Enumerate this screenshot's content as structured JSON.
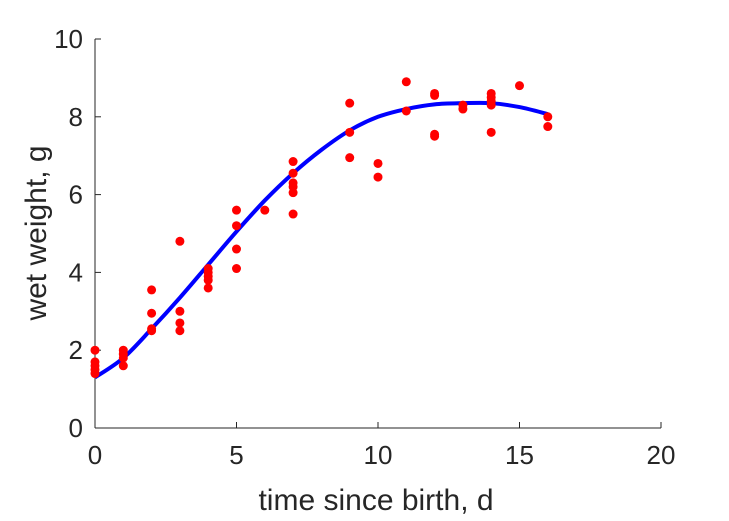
{
  "chart_data": {
    "type": "scatter",
    "xlabel": "time since birth, d",
    "ylabel": "wet weight, g",
    "xlim": [
      0,
      20
    ],
    "ylim": [
      0,
      10
    ],
    "xticks": [
      "0",
      "5",
      "10",
      "15",
      "20"
    ],
    "yticks": [
      "0",
      "2",
      "4",
      "6",
      "8",
      "10"
    ],
    "grid": false,
    "legend": "none",
    "series": [
      {
        "kind": "points",
        "color": "#ff0000",
        "x": [
          0,
          0,
          0,
          0,
          0,
          1,
          1,
          1,
          1,
          2,
          2,
          2,
          2,
          3,
          3,
          3,
          3,
          4,
          4,
          4,
          4,
          4,
          5,
          5,
          5,
          5,
          6,
          7,
          7,
          7,
          7,
          7,
          7,
          9,
          9,
          9,
          10,
          10,
          11,
          11,
          12,
          12,
          12,
          12,
          13,
          13,
          14,
          14,
          14,
          14,
          14,
          15,
          16,
          16
        ],
        "y": [
          2.0,
          1.7,
          1.6,
          1.5,
          1.4,
          2.0,
          1.9,
          1.8,
          1.6,
          3.55,
          2.95,
          2.55,
          2.5,
          4.8,
          3.0,
          2.7,
          2.5,
          4.1,
          4.0,
          3.9,
          3.8,
          3.6,
          5.6,
          5.2,
          4.6,
          4.1,
          5.6,
          6.85,
          6.55,
          6.3,
          6.2,
          6.05,
          5.5,
          8.35,
          7.6,
          6.95,
          6.8,
          6.45,
          8.9,
          8.15,
          8.6,
          8.55,
          7.55,
          7.5,
          8.3,
          8.2,
          8.6,
          8.5,
          8.4,
          8.3,
          7.6,
          8.8,
          8.0,
          7.75
        ]
      },
      {
        "kind": "curve",
        "color": "#0000ff",
        "x": [
          0,
          1,
          2,
          3,
          4,
          5,
          6,
          7,
          8,
          9,
          10,
          11,
          12,
          13,
          14,
          15,
          16
        ],
        "y": [
          1.3,
          1.8,
          2.55,
          3.35,
          4.2,
          5.05,
          5.85,
          6.55,
          7.15,
          7.65,
          8.0,
          8.2,
          8.32,
          8.35,
          8.35,
          8.25,
          8.07
        ]
      }
    ]
  }
}
